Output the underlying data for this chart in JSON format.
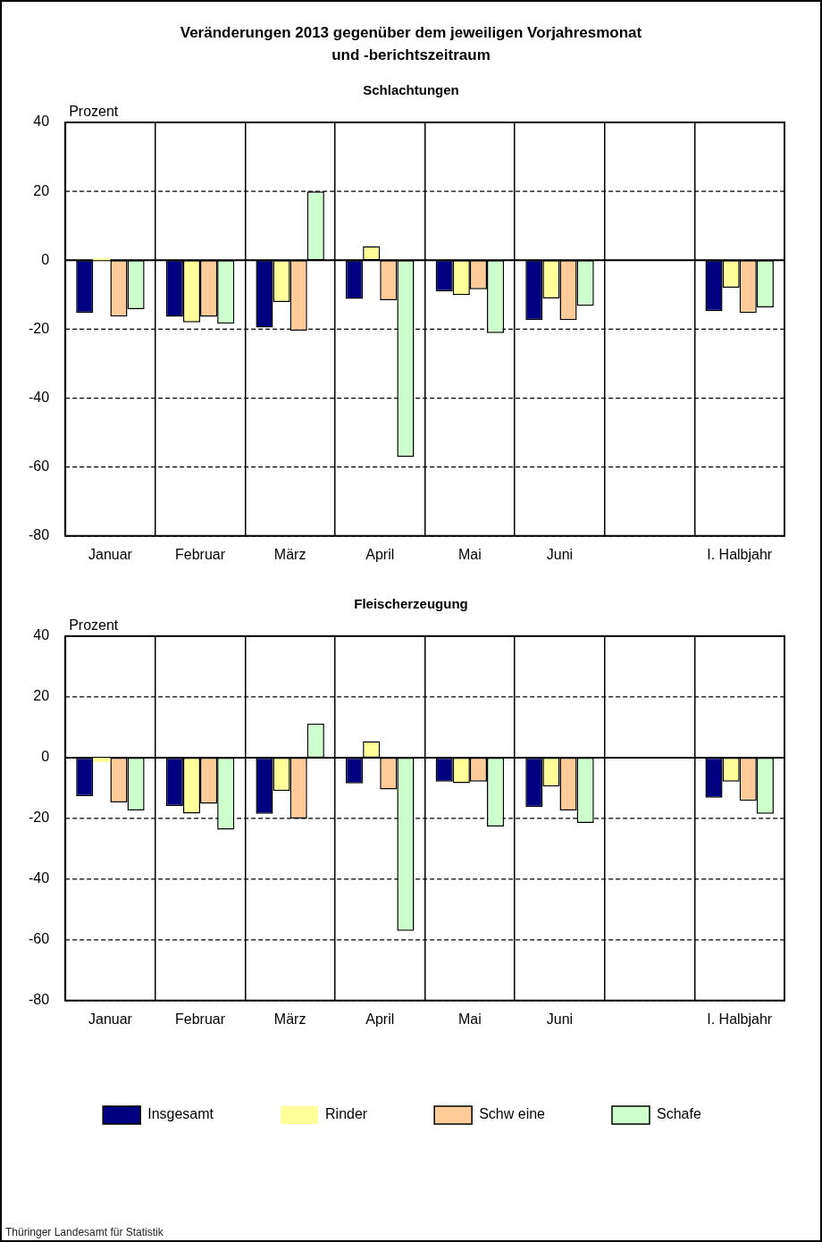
{
  "chart_data": [
    {
      "type": "bar",
      "title": "Veränderungen 2013 gegenüber dem jeweiligen Vorjahresmonat und -berichtszeitraum",
      "subtitle": "Schlachtungen",
      "ylabel": "Prozent",
      "categories": [
        "Januar",
        "Februar",
        "März",
        "April",
        "Mai",
        "Juni",
        null,
        "I. Halbjahr"
      ],
      "series": [
        {
          "color": "#000080",
          "values": [
            -15.3,
            -16.4,
            -19.5,
            -11.2,
            -9,
            -17.4,
            null,
            -14.8
          ]
        },
        {
          "color": "#ffff99",
          "values": [
            0.5,
            -18,
            -12.1,
            4.1,
            -10.1,
            -11.1,
            null,
            -8
          ]
        },
        {
          "color": "#ffcc99",
          "values": [
            -16.3,
            -16.4,
            -20.5,
            -11.6,
            -8.4,
            -17.4,
            null,
            -15.3
          ]
        },
        {
          "color": "#ccffcc",
          "values": [
            -14.2,
            -18.4,
            20,
            -57.1,
            -21.1,
            -13.2,
            null,
            -13.7
          ]
        }
      ],
      "ylim": [
        -80,
        40
      ],
      "yticks": [
        -80,
        -60,
        -40,
        -20,
        0,
        20,
        40
      ],
      "grid": true,
      "legend": false
    },
    {
      "type": "bar",
      "title": "Fleischerzeugung",
      "ylabel": "Prozent",
      "categories": [
        "Januar",
        "Februar",
        "März",
        "April",
        "Mai",
        "Juni",
        null,
        "I. Halbjahr"
      ],
      "series": [
        {
          "name": "Insgesamt",
          "color": "#000080",
          "values": [
            -12.7,
            -15.9,
            -18.5,
            -8.5,
            -7.9,
            -16.3,
            null,
            -13.2
          ]
        },
        {
          "name": "Rinder",
          "color": "#ffff99",
          "values": [
            -1.4,
            -18.4,
            -11,
            5.4,
            -8.4,
            -9.5,
            null,
            -7.9
          ]
        },
        {
          "name": "Schw eine",
          "color": "#ffcc99",
          "values": [
            -14.7,
            -15.2,
            -20,
            -10.5,
            -7.9,
            -17.4,
            null,
            -14.2
          ]
        },
        {
          "name": "Schafe",
          "color": "#ccffcc",
          "values": [
            -17.4,
            -23.7,
            11.2,
            -57,
            -22.7,
            -21.5,
            null,
            -18.5
          ]
        }
      ],
      "ylim": [
        -80,
        40
      ],
      "yticks": [
        -80,
        -60,
        -40,
        -20,
        0,
        20,
        40
      ],
      "grid": true,
      "legend": "bottom",
      "annotations": [
        "Thüringer Landesamt für Statistik"
      ]
    }
  ]
}
